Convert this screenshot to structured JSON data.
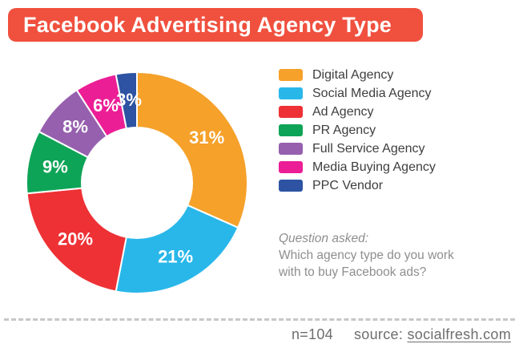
{
  "title": {
    "text": "Facebook Advertising Agency Type"
  },
  "chart_data": {
    "type": "pie",
    "subtype": "donut",
    "title": "Facebook Advertising Agency Type",
    "categories": [
      "Digital Agency",
      "Social Media Agency",
      "Ad Agency",
      "PR Agency",
      "Full Service Agency",
      "Media Buying Agency",
      "PPC Vendor"
    ],
    "values": [
      31,
      21,
      20,
      9,
      8,
      6,
      3
    ],
    "labels": [
      "31%",
      "21%",
      "20%",
      "9%",
      "8%",
      "6%",
      "3%"
    ],
    "unit": "%",
    "colors": [
      "#F5A12A",
      "#29B7EA",
      "#EE3135",
      "#0EA457",
      "#9660AE",
      "#EC1E96",
      "#2D53A2"
    ],
    "legend_position": "right",
    "start_angle_deg": -90,
    "direction": "clockwise",
    "slice_separator_color": "#FFFFFF"
  },
  "question": {
    "heading": "Question asked:",
    "lines": [
      "Which agency type do you work",
      "with to buy Facebook ads?"
    ]
  },
  "footer": {
    "n_label": "n=104",
    "source_label": "source:",
    "source_link": "socialfresh.com"
  },
  "colors": {
    "banner_bg": "#F0503E",
    "banner_text": "#FFFFFF",
    "legend_text": "#3E3E3E",
    "question_text": "#8E8E8E",
    "footer_text": "#6E6E6E",
    "divider": "#C7C7C7",
    "slice_label": "#FFFFFF"
  }
}
